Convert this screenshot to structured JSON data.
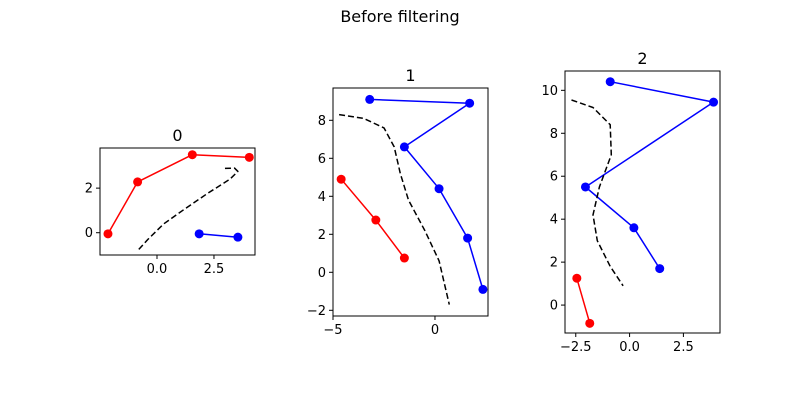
{
  "figure": {
    "title": "Before filtering",
    "colors": {
      "red": "#ff0000",
      "blue": "#0000ff",
      "boundary": "#000000"
    }
  },
  "chart_data": [
    {
      "type": "line",
      "title": "0",
      "xlim": [
        -2.5,
        4.3
      ],
      "ylim": [
        -1.0,
        3.8
      ],
      "xticks": [
        0.0,
        2.5
      ],
      "xtick_labels": [
        "0.0",
        "2.5"
      ],
      "yticks": [
        0,
        2
      ],
      "ytick_labels": [
        "0",
        "2"
      ],
      "series": [
        {
          "color": "red",
          "points": [
            [
              -2.15,
              -0.05
            ],
            [
              -0.85,
              2.28
            ],
            [
              1.55,
              3.5
            ],
            [
              4.05,
              3.38
            ]
          ]
        },
        {
          "color": "blue",
          "points": [
            [
              1.85,
              -0.05
            ],
            [
              3.55,
              -0.2
            ]
          ]
        },
        {
          "color": "black",
          "style": "dashed",
          "markers": false,
          "points": [
            [
              -0.8,
              -0.75
            ],
            [
              -0.4,
              -0.3
            ],
            [
              0.3,
              0.4
            ],
            [
              1.2,
              1.05
            ],
            [
              2.2,
              1.75
            ],
            [
              3.2,
              2.4
            ],
            [
              3.55,
              2.75
            ],
            [
              3.4,
              2.9
            ],
            [
              2.9,
              2.88
            ]
          ]
        }
      ]
    },
    {
      "type": "line",
      "title": "1",
      "xlim": [
        -5.0,
        2.6
      ],
      "ylim": [
        -2.3,
        9.7
      ],
      "xticks": [
        -5,
        0
      ],
      "xtick_labels": [
        "−5",
        "0"
      ],
      "yticks": [
        -2,
        0,
        2,
        4,
        6,
        8
      ],
      "ytick_labels": [
        "−2",
        "0",
        "2",
        "4",
        "6",
        "8"
      ],
      "series": [
        {
          "color": "red",
          "points": [
            [
              -4.6,
              4.9
            ],
            [
              -2.9,
              2.75
            ],
            [
              -1.5,
              0.75
            ]
          ]
        },
        {
          "color": "blue",
          "points": [
            [
              -3.2,
              9.1
            ],
            [
              1.7,
              8.9
            ],
            [
              -1.5,
              6.6
            ],
            [
              0.2,
              4.4
            ],
            [
              1.6,
              1.8
            ],
            [
              2.35,
              -0.9
            ]
          ]
        },
        {
          "color": "black",
          "style": "dashed",
          "markers": false,
          "points": [
            [
              -4.7,
              8.3
            ],
            [
              -3.5,
              8.1
            ],
            [
              -2.5,
              7.6
            ],
            [
              -2.0,
              6.6
            ],
            [
              -1.7,
              5.2
            ],
            [
              -1.3,
              3.8
            ],
            [
              -0.5,
              2.2
            ],
            [
              0.2,
              0.6
            ],
            [
              0.7,
              -1.7
            ]
          ]
        }
      ]
    },
    {
      "type": "line",
      "title": "2",
      "xlim": [
        -3.0,
        4.2
      ],
      "ylim": [
        -1.3,
        10.9
      ],
      "xticks": [
        -2.5,
        0.0,
        2.5
      ],
      "xtick_labels": [
        "−2.5",
        "0.0",
        "2.5"
      ],
      "yticks": [
        0,
        2,
        4,
        6,
        8,
        10
      ],
      "ytick_labels": [
        "0",
        "2",
        "4",
        "6",
        "8",
        "10"
      ],
      "series": [
        {
          "color": "red",
          "points": [
            [
              -2.45,
              1.25
            ],
            [
              -1.85,
              -0.85
            ]
          ]
        },
        {
          "color": "blue",
          "points": [
            [
              -0.9,
              10.4
            ],
            [
              3.9,
              9.45
            ],
            [
              -2.05,
              5.5
            ],
            [
              0.2,
              3.6
            ],
            [
              1.4,
              1.7
            ]
          ]
        },
        {
          "color": "black",
          "style": "dashed",
          "markers": false,
          "points": [
            [
              -2.7,
              9.55
            ],
            [
              -1.7,
              9.2
            ],
            [
              -0.9,
              8.4
            ],
            [
              -0.85,
              7.0
            ],
            [
              -1.4,
              5.5
            ],
            [
              -1.7,
              4.2
            ],
            [
              -1.5,
              3.0
            ],
            [
              -0.9,
              1.8
            ],
            [
              -0.3,
              0.9
            ]
          ]
        }
      ]
    }
  ]
}
